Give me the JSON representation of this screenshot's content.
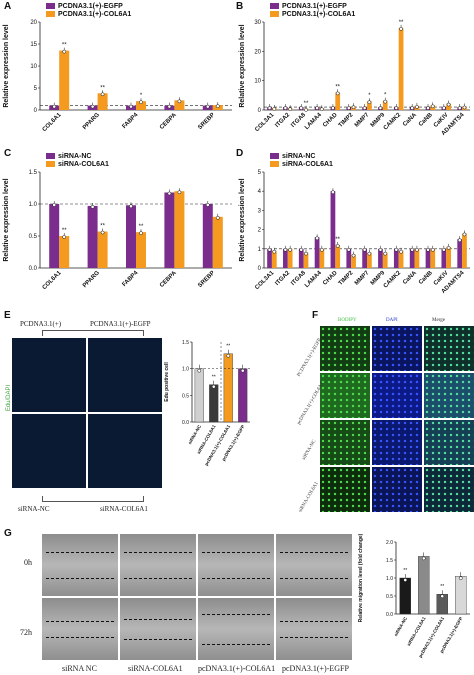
{
  "labels": {
    "A": "A",
    "B": "B",
    "C": "C",
    "D": "D",
    "E": "E",
    "F": "F",
    "G": "G"
  },
  "colors": {
    "purple": "#7B2D8E",
    "orange": "#F39A1F",
    "edu_bg": "#0a1a33",
    "fluor_green": "#3fbf3f",
    "fluor_blue": "#2235c8"
  },
  "chart_data": [
    {
      "id": "A",
      "type": "bar",
      "ylabel": "Relative expression level",
      "ylim": [
        0,
        20
      ],
      "yticks": [
        "0",
        "5",
        "10",
        "15",
        "20"
      ],
      "categories": [
        "COL6A1",
        "PPARG",
        "FABP4",
        "CEBPA",
        "SREBP"
      ],
      "legend": [
        "PCDNA3.1(+)-EGFP",
        "PCDNA3.1(+)-COL6A1"
      ],
      "series": [
        {
          "name": "PCDNA3.1(+)-EGFP",
          "values": [
            1,
            1,
            1,
            1,
            1
          ]
        },
        {
          "name": "PCDNA3.1(+)-COL6A1",
          "values": [
            13.5,
            3.8,
            2.0,
            2.2,
            1.1
          ]
        }
      ],
      "significance": [
        "**",
        "**",
        "*",
        "",
        ""
      ]
    },
    {
      "id": "B",
      "type": "bar",
      "ylabel": "Relative expression level",
      "ylim": [
        0,
        30
      ],
      "yticks": [
        "0",
        "10",
        "20",
        "30"
      ],
      "categories": [
        "COL3A1",
        "ITGA2",
        "ITGA8",
        "LAMA4",
        "CHAD",
        "TIMP2",
        "MMP7",
        "MMP9",
        "CAMK2",
        "CaNA",
        "CaNB",
        "CaKIV",
        "ADAMTS4"
      ],
      "legend": [
        "PCDNA3.1(+)-EGFP",
        "PCDNA3.1(+)-COL6A1"
      ],
      "series": [
        {
          "name": "PCDNA3.1(+)-EGFP",
          "values": [
            1,
            1,
            1,
            1,
            1,
            1,
            1,
            1,
            1,
            1,
            1,
            1,
            1
          ]
        },
        {
          "name": "PCDNA3.1(+)-COL6A1",
          "values": [
            0.7,
            0.6,
            0.4,
            0.6,
            6.0,
            1.3,
            3.0,
            3.2,
            28.0,
            1.4,
            1.6,
            2.2,
            1.2
          ]
        }
      ],
      "significance": [
        "",
        "",
        "**",
        "",
        "**",
        "",
        "*",
        "*",
        "**",
        "",
        "",
        "",
        ""
      ]
    },
    {
      "id": "C",
      "type": "bar",
      "ylabel": "Relative expression level",
      "ylim": [
        0,
        1.5
      ],
      "yticks": [
        "0.0",
        "0.5",
        "1.0",
        "1.5"
      ],
      "categories": [
        "COL6A1",
        "PPARG",
        "FABP4",
        "CEBPA",
        "SREBP"
      ],
      "legend": [
        "siRNA-NC",
        "siRNA-COL6A1"
      ],
      "series": [
        {
          "name": "siRNA-NC",
          "values": [
            1.0,
            0.97,
            0.98,
            1.18,
            1.0
          ]
        },
        {
          "name": "siRNA-COL6A1",
          "values": [
            0.5,
            0.57,
            0.56,
            1.2,
            0.8
          ]
        }
      ],
      "significance": [
        "**",
        "**",
        "**",
        "",
        ""
      ]
    },
    {
      "id": "D",
      "type": "bar",
      "ylabel": "Relative expression level",
      "ylim": [
        0,
        5
      ],
      "yticks": [
        "0",
        "1",
        "2",
        "3",
        "4",
        "5"
      ],
      "categories": [
        "COL3A1",
        "ITGA2",
        "ITGA8",
        "LAMA4",
        "CHAD",
        "TIMP2",
        "MMP7",
        "MMP9",
        "CAMK2",
        "CaNA",
        "CaNB",
        "CaKIV",
        "ADAMTS4"
      ],
      "legend": [
        "siRNA-NC",
        "siRNA-COL6A1"
      ],
      "series": [
        {
          "name": "siRNA-NC",
          "values": [
            1,
            1,
            1,
            1.6,
            4.0,
            1,
            1,
            1,
            1,
            1,
            1,
            1,
            1.5
          ]
        },
        {
          "name": "siRNA-COL6A1",
          "values": [
            0.9,
            1.0,
            0.8,
            1.0,
            1.2,
            0.7,
            0.8,
            0.8,
            0.9,
            1.0,
            1.0,
            1.1,
            1.8
          ]
        }
      ],
      "significance": [
        "",
        "",
        "",
        "",
        "**",
        "",
        "",
        "",
        "",
        "",
        "",
        "",
        ""
      ]
    },
    {
      "id": "E-bar",
      "type": "bar",
      "ylabel": "Edu positive cell",
      "ylim": [
        0,
        1.5
      ],
      "yticks": [
        "0.0",
        "0.5",
        "1.0",
        "1.5"
      ],
      "categories": [
        "siRNA-NC",
        "siRNA-COL6A1",
        "pcDNA3.1(+)-COL6A1",
        "pcDNA3.1(+)-EGFP"
      ],
      "values": [
        1.0,
        0.7,
        1.28,
        1.0
      ],
      "bar_colors": [
        "#d0d0d0",
        "#3a3a3a",
        "#F39A1F",
        "#7B2D8E"
      ],
      "significance": [
        "",
        "**",
        "**",
        ""
      ]
    },
    {
      "id": "G-bar",
      "type": "bar",
      "ylabel": "Relative migration level (fold change)",
      "ylim": [
        0,
        2.0
      ],
      "yticks": [
        "0.0",
        "0.5",
        "1.0",
        "1.5",
        "2.0"
      ],
      "categories": [
        "siRNA-NC",
        "siRNA-COL6A1",
        "pcDNA3.1(+)-COL6A1",
        "pcDNA3.1(+)-EGFP"
      ],
      "values": [
        1.0,
        1.6,
        0.55,
        1.05
      ],
      "bar_colors": [
        "#1a1a1a",
        "#8a8a8a",
        "#5a5a5a",
        "#d8d8d8"
      ],
      "significance": [
        "**",
        "",
        "**",
        ""
      ]
    }
  ],
  "panelE": {
    "top_left": "PCDNA3.1(+)",
    "top_right": "PCDNA3.1(+)-EGFP",
    "bottom_left": "siRNA-NC",
    "bottom_right": "siRNA-COL6A1",
    "side": "Edu/DAPI"
  },
  "panelF": {
    "headers": [
      "BODIPY",
      "DAPI",
      "Merge"
    ],
    "rows": [
      "PCDNA3.1(+)-EGFP",
      "pcDNA3.1(+)-COL6A1",
      "siRNA-NC",
      "siRNA-COL6A1"
    ]
  },
  "panelG": {
    "times": [
      "0h",
      "72h"
    ],
    "groups": [
      "siRNA NC",
      "siRNA-COL6A1",
      "pcDNA3.1(+)-COL6A1",
      "pcDNA3.1(+)-EGFP"
    ]
  }
}
